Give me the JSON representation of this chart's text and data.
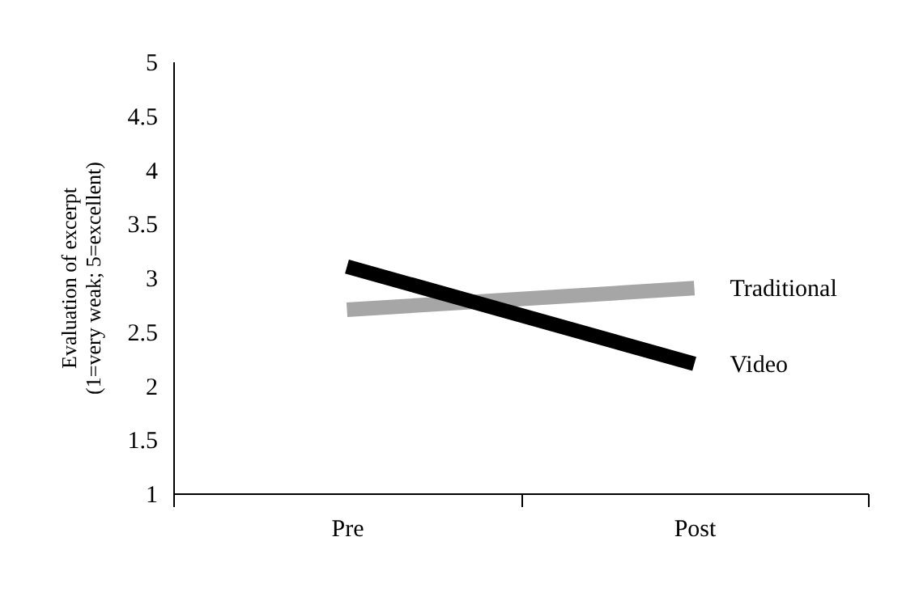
{
  "chart_data": {
    "type": "line",
    "ylabel": "Evaluation of excerpt\n(1=very weak; 5=excellent)",
    "categories": [
      "Pre",
      "Post"
    ],
    "series": [
      {
        "name": "Traditional",
        "color": "#a6a6a6",
        "values": [
          2.7,
          2.9
        ]
      },
      {
        "name": "Video",
        "color": "#000000",
        "values": [
          3.1,
          2.2
        ]
      }
    ],
    "ylim": [
      1,
      5
    ],
    "yticks": [
      1,
      1.5,
      2,
      2.5,
      3,
      3.5,
      4,
      4.5,
      5
    ],
    "grid": false,
    "legend": false,
    "marker": "none",
    "line_style": "solid"
  }
}
